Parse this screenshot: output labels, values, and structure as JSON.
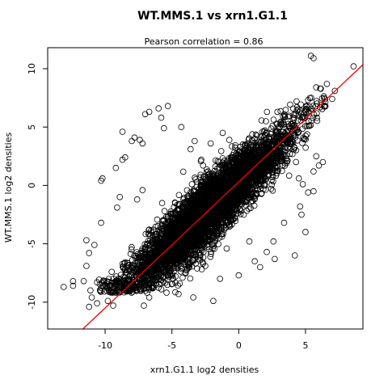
{
  "chart_data": {
    "type": "scatter",
    "title": "WT.MMS.1 vs xrn1.G1.1",
    "subtitle": "Pearson correlation =  0.86",
    "xlabel": "xrn1.G1.1 log2 densities",
    "ylabel": "WT.MMS.1 log2 densities",
    "xlim": [
      -14.3,
      9.3
    ],
    "ylim": [
      -12.3,
      11.8
    ],
    "x_ticks": [
      -10,
      -5,
      0,
      5
    ],
    "y_ticks": [
      -10,
      -5,
      0,
      5,
      10
    ],
    "x_tick_labels": [
      "-10",
      "-5",
      "0",
      "5"
    ],
    "y_tick_labels": [
      "-10",
      "-5",
      "0",
      "5",
      "10"
    ],
    "grid": false,
    "legend": "none",
    "marker": "open-circle",
    "point_color": "#000000",
    "line_color": "#ff0000",
    "regression_line": {
      "intercept": 0.3,
      "slope": 1.08
    },
    "cloud": {
      "count": 5200,
      "x_range": [
        -10.5,
        6.5
      ],
      "intercept": 0.3,
      "slope": 1.05,
      "spread": 1.1
    },
    "outliers": [
      [
        -6.0,
        6.6
      ],
      [
        -5.3,
        6.8
      ],
      [
        -6.7,
        6.3
      ],
      [
        -7.0,
        6.1
      ],
      [
        -5.8,
        5.8
      ],
      [
        -5.6,
        4.9
      ],
      [
        -4.3,
        5.0
      ],
      [
        -8.7,
        4.6
      ],
      [
        -7.8,
        4.1
      ],
      [
        -8.0,
        3.8
      ],
      [
        -7.4,
        3.9
      ],
      [
        -7.2,
        3.6
      ],
      [
        -8.5,
        2.4
      ],
      [
        -8.7,
        2.2
      ],
      [
        -9.2,
        1.5
      ],
      [
        -10.2,
        0.6
      ],
      [
        -10.3,
        0.4
      ],
      [
        -8.9,
        -1.0
      ],
      [
        -9.1,
        -1.9
      ],
      [
        -7.2,
        -0.4
      ],
      [
        -7.6,
        -1.2
      ],
      [
        -10.3,
        -3.2
      ],
      [
        -11.4,
        -4.7
      ],
      [
        -10.8,
        -5.1
      ],
      [
        -11.2,
        -5.8
      ],
      [
        -11.4,
        -6.9
      ],
      [
        -11.6,
        -8.2
      ],
      [
        -12.4,
        -8.2
      ],
      [
        -10.6,
        -8.3
      ],
      [
        -11.1,
        -9.0
      ],
      [
        -11.0,
        -9.6
      ],
      [
        -10.6,
        -10.1
      ],
      [
        -11.2,
        -10.4
      ],
      [
        -9.8,
        -9.9
      ],
      [
        -9.4,
        -10.3
      ],
      [
        -7.1,
        -10.3
      ],
      [
        -6.7,
        -9.6
      ],
      [
        -4.5,
        -9.3
      ],
      [
        -3.4,
        -9.6
      ],
      [
        -1.9,
        -9.9
      ],
      [
        -1.4,
        -8.0
      ],
      [
        0.0,
        -7.7
      ],
      [
        1.6,
        -7.0
      ],
      [
        2.7,
        -6.3
      ],
      [
        4.2,
        -6.0
      ],
      [
        5.0,
        -4.0
      ],
      [
        2.6,
        -4.8
      ],
      [
        3.4,
        -3.2
      ],
      [
        4.7,
        -2.5
      ],
      [
        4.6,
        -1.8
      ],
      [
        5.6,
        -0.5
      ],
      [
        5.2,
        -0.6
      ],
      [
        4.8,
        0.1
      ],
      [
        4.5,
        0.6
      ],
      [
        5.6,
        1.2
      ],
      [
        6.0,
        1.7
      ],
      [
        6.3,
        2.0
      ],
      [
        5.8,
        2.5
      ],
      [
        3.4,
        6.1
      ],
      [
        2.9,
        6.3
      ],
      [
        5.4,
        11.1
      ],
      [
        5.6,
        10.9
      ],
      [
        8.6,
        10.2
      ],
      [
        6.6,
        8.7
      ],
      [
        6.1,
        8.3
      ],
      [
        5.8,
        8.4
      ],
      [
        7.2,
        8.1
      ],
      [
        7.0,
        7.4
      ],
      [
        6.2,
        6.9
      ],
      [
        -1.2,
        4.5
      ],
      [
        -0.7,
        3.9
      ],
      [
        0.9,
        3.3
      ],
      [
        -2.1,
        3.6
      ],
      [
        -3.3,
        3.8
      ],
      [
        -3.6,
        3.1
      ],
      [
        -2.8,
        2.2
      ],
      [
        -1.9,
        -4.5
      ],
      [
        -0.9,
        -5.4
      ],
      [
        0.8,
        -4.8
      ],
      [
        2.1,
        -5.7
      ],
      [
        -2.5,
        -6.9
      ],
      [
        1.2,
        -6.5
      ],
      [
        -4.2,
        -7.9
      ],
      [
        -5.8,
        -8.9
      ],
      [
        -8.2,
        -9.0
      ],
      [
        -13.1,
        -8.7
      ],
      [
        -12.4,
        -8.6
      ]
    ]
  }
}
